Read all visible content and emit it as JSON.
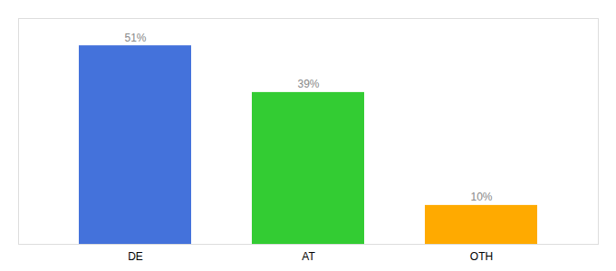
{
  "chart_data": {
    "type": "bar",
    "categories": [
      "DE",
      "AT",
      "OTH"
    ],
    "values": [
      51,
      39,
      10
    ],
    "value_labels": [
      "51%",
      "39%",
      "10%"
    ],
    "colors": [
      "#4472db",
      "#33cc33",
      "#ffaa00"
    ],
    "ylim": [
      0,
      58
    ],
    "grid": false,
    "data_labels": true,
    "tick_labels": "x"
  }
}
